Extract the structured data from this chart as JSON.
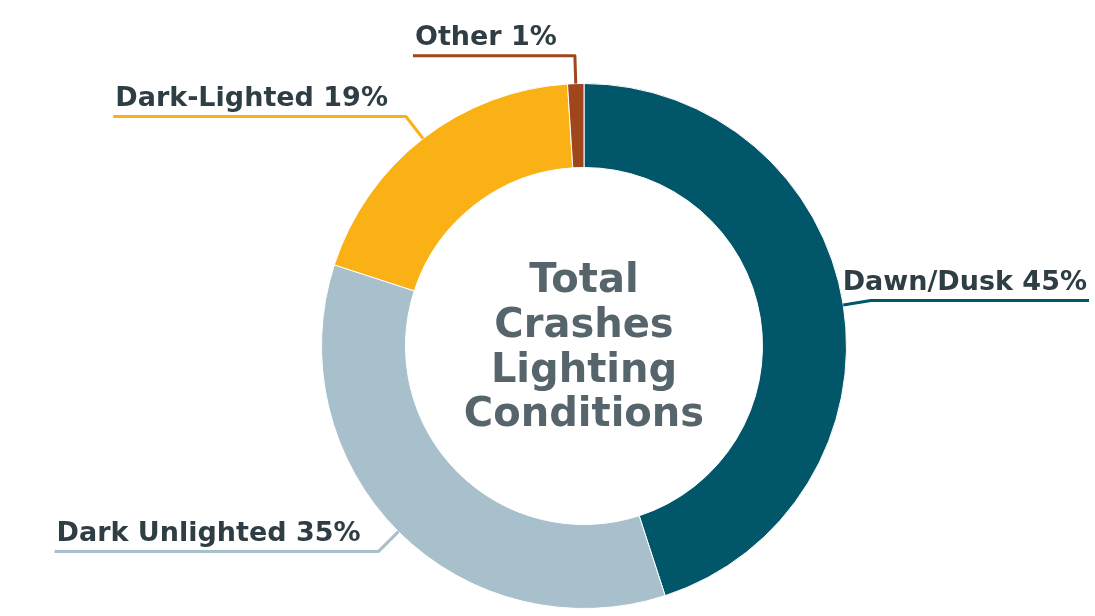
{
  "chart_data": {
    "type": "donut",
    "title": "Total Crashes Lighting Conditions",
    "categories": [
      "Dawn/Dusk",
      "Dark Unlighted",
      "Dark-Lighted",
      "Other"
    ],
    "values": [
      45,
      35,
      19,
      1
    ],
    "value_labels": [
      "45%",
      "35%",
      "19%",
      "1%"
    ],
    "colors": [
      "#02566a",
      "#a8c0cb",
      "#f9b116",
      "#a0461d"
    ],
    "legend": false
  }
}
